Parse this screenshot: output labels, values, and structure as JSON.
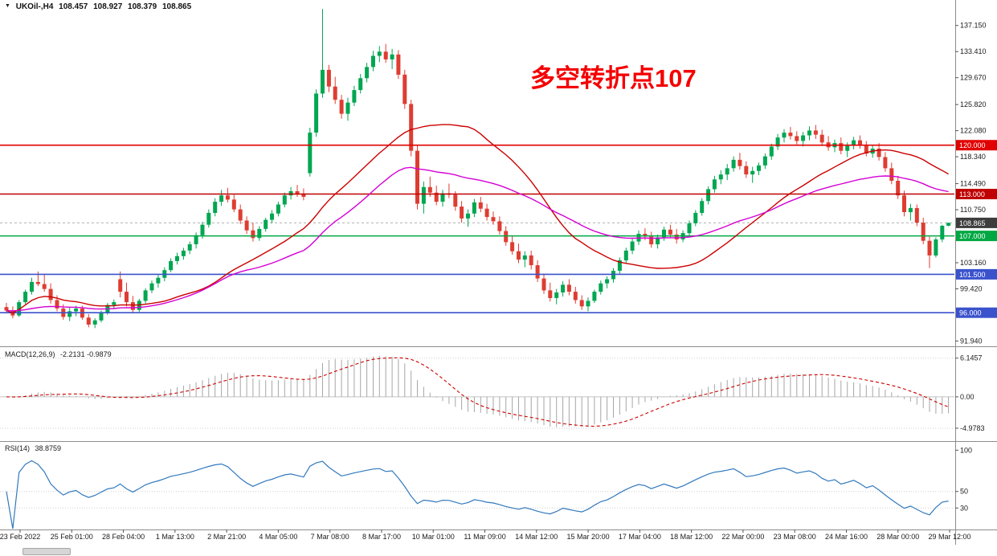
{
  "title_bar": {
    "symbol": "UKOil-,H4",
    "open": "108.457",
    "high": "108.927",
    "low": "108.379",
    "close": "108.865"
  },
  "annotation": {
    "text": "多空转折点107",
    "color": "#f50000"
  },
  "chart_data": {
    "type": "candlestick",
    "symbol": "UKOil-",
    "timeframe": "H4",
    "up_color": "#00a651",
    "down_color": "#de3d32",
    "candles": [
      [
        96.8,
        97.4,
        95.9,
        96.3
      ],
      [
        96.3,
        96.9,
        95.2,
        95.6
      ],
      [
        95.6,
        97.8,
        95.4,
        97.5
      ],
      [
        97.5,
        99.3,
        97.2,
        99.0
      ],
      [
        99.0,
        101.0,
        98.6,
        100.4
      ],
      [
        100.4,
        101.9,
        99.8,
        100.1
      ],
      [
        100.1,
        101.5,
        99.0,
        99.4
      ],
      [
        99.4,
        100.2,
        97.3,
        97.8
      ],
      [
        97.8,
        98.5,
        96.2,
        96.6
      ],
      [
        96.6,
        97.2,
        95.0,
        95.4
      ],
      [
        95.4,
        96.8,
        94.8,
        96.2
      ],
      [
        96.2,
        97.0,
        95.5,
        96.6
      ],
      [
        96.6,
        97.0,
        95.0,
        95.3
      ],
      [
        95.3,
        95.8,
        93.9,
        94.3
      ],
      [
        94.3,
        95.2,
        93.8,
        94.9
      ],
      [
        94.9,
        96.3,
        94.6,
        96.0
      ],
      [
        96.0,
        97.4,
        95.7,
        97.1
      ],
      [
        97.1,
        97.9,
        96.5,
        97.5
      ],
      [
        100.8,
        101.9,
        98.2,
        99.0
      ],
      [
        99.0,
        100.3,
        96.9,
        97.5
      ],
      [
        97.5,
        98.4,
        95.9,
        96.4
      ],
      [
        96.4,
        98.0,
        96.1,
        97.7
      ],
      [
        97.7,
        99.5,
        97.3,
        99.2
      ],
      [
        99.2,
        100.6,
        98.8,
        100.2
      ],
      [
        100.2,
        101.4,
        99.6,
        101.0
      ],
      [
        101.0,
        102.5,
        100.5,
        102.1
      ],
      [
        102.1,
        103.8,
        101.8,
        103.4
      ],
      [
        103.4,
        104.6,
        102.9,
        104.1
      ],
      [
        104.1,
        105.3,
        103.6,
        104.9
      ],
      [
        104.9,
        106.2,
        104.4,
        105.8
      ],
      [
        105.8,
        107.5,
        105.2,
        107.1
      ],
      [
        107.1,
        109.0,
        106.6,
        108.6
      ],
      [
        108.6,
        110.8,
        108.2,
        110.3
      ],
      [
        110.3,
        112.4,
        109.8,
        111.9
      ],
      [
        111.9,
        113.6,
        111.3,
        112.8
      ],
      [
        112.8,
        113.9,
        111.8,
        112.2
      ],
      [
        112.2,
        112.9,
        110.4,
        110.8
      ],
      [
        110.8,
        111.5,
        108.7,
        109.2
      ],
      [
        109.2,
        109.8,
        107.3,
        107.8
      ],
      [
        107.8,
        108.9,
        106.2,
        106.7
      ],
      [
        106.7,
        108.4,
        106.3,
        108.0
      ],
      [
        108.0,
        109.6,
        107.6,
        109.3
      ],
      [
        109.3,
        110.7,
        108.8,
        110.2
      ],
      [
        110.2,
        111.9,
        109.8,
        111.5
      ],
      [
        111.5,
        113.2,
        111.1,
        112.8
      ],
      [
        112.8,
        114.0,
        112.2,
        113.4
      ],
      [
        113.4,
        114.3,
        112.6,
        113.0
      ],
      [
        113.0,
        113.8,
        112.1,
        112.6
      ],
      [
        116.0,
        122.5,
        115.5,
        121.8
      ],
      [
        121.8,
        128.0,
        121.2,
        127.4
      ],
      [
        127.4,
        139.5,
        126.8,
        130.8
      ],
      [
        130.8,
        131.5,
        127.6,
        128.4
      ],
      [
        128.4,
        129.8,
        125.9,
        126.5
      ],
      [
        126.5,
        127.2,
        123.8,
        124.5
      ],
      [
        124.5,
        126.8,
        123.5,
        126.1
      ],
      [
        126.1,
        128.5,
        125.6,
        127.9
      ],
      [
        127.9,
        130.2,
        127.4,
        129.6
      ],
      [
        129.6,
        131.8,
        129.0,
        131.2
      ],
      [
        131.2,
        133.5,
        130.6,
        132.8
      ],
      [
        132.8,
        134.2,
        131.9,
        133.4
      ],
      [
        133.4,
        134.5,
        131.8,
        132.3
      ],
      [
        132.3,
        133.8,
        130.9,
        133.0
      ],
      [
        133.0,
        133.6,
        129.5,
        130.1
      ],
      [
        130.1,
        130.8,
        125.2,
        125.9
      ],
      [
        125.9,
        126.5,
        118.4,
        119.2
      ],
      [
        119.2,
        120.0,
        110.8,
        111.6
      ],
      [
        111.6,
        114.8,
        110.2,
        114.0
      ],
      [
        114.0,
        115.5,
        112.6,
        113.2
      ],
      [
        113.2,
        114.2,
        111.4,
        111.9
      ],
      [
        111.9,
        113.6,
        111.2,
        113.1
      ],
      [
        113.1,
        114.5,
        112.4,
        112.9
      ],
      [
        112.9,
        113.4,
        110.6,
        111.2
      ],
      [
        111.2,
        112.0,
        108.9,
        109.5
      ],
      [
        109.5,
        110.8,
        108.3,
        110.2
      ],
      [
        110.2,
        112.3,
        109.7,
        111.8
      ],
      [
        111.8,
        112.6,
        110.4,
        110.9
      ],
      [
        110.9,
        111.6,
        109.2,
        109.7
      ],
      [
        109.7,
        110.5,
        108.6,
        109.1
      ],
      [
        109.1,
        109.8,
        107.2,
        107.7
      ],
      [
        107.7,
        108.4,
        105.6,
        106.1
      ],
      [
        106.1,
        107.0,
        104.3,
        104.8
      ],
      [
        104.8,
        105.9,
        103.1,
        103.6
      ],
      [
        103.6,
        104.8,
        102.5,
        104.2
      ],
      [
        104.2,
        104.9,
        102.2,
        102.8
      ],
      [
        102.8,
        103.5,
        100.4,
        100.9
      ],
      [
        100.9,
        101.6,
        98.7,
        99.2
      ],
      [
        99.2,
        100.3,
        97.6,
        98.1
      ],
      [
        98.1,
        99.4,
        97.2,
        98.9
      ],
      [
        98.9,
        100.5,
        98.3,
        100.0
      ],
      [
        100.0,
        100.8,
        98.5,
        99.0
      ],
      [
        99.0,
        99.7,
        97.3,
        97.8
      ],
      [
        97.8,
        98.5,
        96.4,
        96.9
      ],
      [
        96.9,
        98.2,
        96.2,
        97.7
      ],
      [
        97.7,
        99.3,
        97.4,
        99.0
      ],
      [
        99.0,
        100.6,
        98.6,
        100.2
      ],
      [
        100.2,
        101.2,
        99.5,
        100.8
      ],
      [
        100.8,
        102.4,
        100.3,
        102.0
      ],
      [
        102.0,
        103.9,
        101.6,
        103.5
      ],
      [
        103.5,
        105.3,
        103.0,
        104.9
      ],
      [
        104.9,
        106.6,
        104.4,
        106.2
      ],
      [
        106.2,
        107.8,
        105.7,
        107.3
      ],
      [
        107.3,
        108.1,
        106.4,
        106.9
      ],
      [
        106.9,
        107.6,
        105.3,
        105.8
      ],
      [
        105.8,
        107.2,
        105.2,
        106.8
      ],
      [
        106.8,
        108.3,
        106.3,
        107.9
      ],
      [
        107.9,
        108.6,
        106.7,
        107.2
      ],
      [
        107.2,
        108.0,
        105.9,
        106.5
      ],
      [
        106.5,
        107.8,
        106.1,
        107.4
      ],
      [
        107.4,
        109.2,
        107.0,
        108.8
      ],
      [
        108.8,
        110.7,
        108.4,
        110.3
      ],
      [
        110.3,
        112.4,
        109.9,
        112.0
      ],
      [
        112.0,
        114.1,
        111.5,
        113.7
      ],
      [
        113.7,
        115.6,
        113.2,
        115.1
      ],
      [
        115.1,
        116.4,
        114.4,
        115.8
      ],
      [
        115.8,
        117.3,
        115.0,
        116.7
      ],
      [
        116.7,
        118.4,
        116.2,
        117.9
      ],
      [
        117.9,
        118.9,
        116.5,
        117.0
      ],
      [
        117.0,
        117.7,
        115.3,
        115.8
      ],
      [
        115.8,
        116.9,
        114.6,
        116.3
      ],
      [
        116.3,
        117.5,
        115.7,
        117.1
      ],
      [
        117.1,
        118.8,
        116.6,
        118.4
      ],
      [
        118.4,
        120.2,
        117.9,
        119.8
      ],
      [
        119.8,
        121.6,
        119.3,
        121.1
      ],
      [
        121.1,
        122.3,
        120.4,
        121.8
      ],
      [
        121.8,
        122.6,
        120.8,
        121.3
      ],
      [
        121.3,
        122.0,
        120.1,
        120.6
      ],
      [
        120.6,
        121.9,
        119.8,
        121.4
      ],
      [
        121.4,
        122.7,
        120.7,
        122.1
      ],
      [
        122.1,
        122.9,
        120.9,
        121.5
      ],
      [
        121.5,
        122.2,
        119.9,
        120.4
      ],
      [
        120.4,
        121.3,
        119.2,
        119.7
      ],
      [
        119.7,
        120.8,
        119.0,
        120.3
      ],
      [
        120.3,
        121.1,
        118.7,
        119.2
      ],
      [
        119.2,
        120.4,
        118.3,
        119.9
      ],
      [
        119.9,
        121.2,
        119.4,
        120.7
      ],
      [
        120.7,
        121.4,
        119.5,
        119.9
      ],
      [
        119.9,
        120.6,
        118.4,
        118.8
      ],
      [
        118.8,
        119.9,
        118.2,
        119.5
      ],
      [
        119.5,
        120.3,
        117.8,
        118.3
      ],
      [
        118.3,
        119.0,
        116.2,
        116.7
      ],
      [
        116.7,
        117.5,
        114.4,
        114.9
      ],
      [
        114.9,
        115.6,
        112.3,
        112.8
      ],
      [
        112.8,
        113.5,
        109.8,
        110.4
      ],
      [
        110.4,
        111.6,
        109.2,
        111.0
      ],
      [
        111.0,
        111.5,
        108.4,
        108.9
      ],
      [
        108.9,
        109.6,
        105.8,
        106.3
      ],
      [
        106.3,
        106.9,
        102.4,
        104.2
      ],
      [
        104.2,
        106.8,
        103.9,
        106.5
      ],
      [
        106.5,
        108.6,
        106.1,
        108.457
      ],
      [
        108.457,
        108.927,
        108.379,
        108.865
      ]
    ],
    "moving_averages": [
      {
        "name": "ma-fast-line",
        "type": "sma",
        "period": 26,
        "color": "#cc0000"
      },
      {
        "name": "ma-slow-line",
        "type": "ema",
        "period": 48,
        "color": "#d400d4"
      }
    ],
    "horizontal_levels": [
      {
        "price": 120.0,
        "label": "120.000",
        "color": "#e00000"
      },
      {
        "price": 113.0,
        "label": "113.000",
        "color": "#c00000"
      },
      {
        "price": 107.0,
        "label": "107.000",
        "color": "#00a843"
      },
      {
        "price": 101.5,
        "label": "101.500",
        "color": "#3a52cc"
      },
      {
        "price": 96.0,
        "label": "96.000",
        "color": "#3a52cc"
      }
    ],
    "current_price": {
      "value": 108.865,
      "label": "108.865",
      "badge_color": "#3d3d3d"
    },
    "price_axis": {
      "min": 91.3,
      "max": 140.8,
      "labels": [
        {
          "text": "137.150",
          "value": 137.15
        },
        {
          "text": "133.410",
          "value": 133.41
        },
        {
          "text": "129.670",
          "value": 129.67
        },
        {
          "text": "125.820",
          "value": 125.82
        },
        {
          "text": "122.080",
          "value": 122.08
        },
        {
          "text": "118.340",
          "value": 118.34
        },
        {
          "text": "114.490",
          "value": 114.49
        },
        {
          "text": "110.750",
          "value": 110.75
        },
        {
          "text": "103.160",
          "value": 103.16
        },
        {
          "text": "99.420",
          "value": 99.42
        },
        {
          "text": "91.940",
          "value": 91.94
        }
      ]
    },
    "time_labels": [
      "23 Feb 2022",
      "25 Feb 01:00",
      "28 Feb 04:00",
      "1 Mar 13:00",
      "2 Mar 21:00",
      "4 Mar 05:00",
      "7 Mar 08:00",
      "8 Mar 17:00",
      "10 Mar 01:00",
      "11 Mar 09:00",
      "14 Mar 12:00",
      "15 Mar 20:00",
      "17 Mar 04:00",
      "18 Mar 12:00",
      "22 Mar 00:00",
      "23 Mar 08:00",
      "24 Mar 16:00",
      "28 Mar 00:00",
      "29 Mar 12:00"
    ],
    "indicators": [
      {
        "display": "MACD(12,26,9)",
        "values_text": "-2.2131 -0.9879",
        "fast": 12,
        "slow": 26,
        "signal": 9,
        "range": [
          -6.9,
          7.9
        ],
        "histogram_color": "#a6a6a6",
        "signal_color": "#cc0000",
        "axis": [
          {
            "text": "6.1457",
            "value": 6.1457,
            "line": "dotted"
          },
          {
            "text": "0.00",
            "value": 0,
            "line": "solid"
          },
          {
            "text": "-4.9783",
            "value": -4.9783,
            "line": "dotted"
          }
        ]
      },
      {
        "display": "RSI(14)",
        "values_text": "38.8759",
        "period": 14,
        "range": [
          5,
          110
        ],
        "line_color": "#3179bd",
        "axis": [
          {
            "text": "100",
            "value": 100,
            "line": "none"
          },
          {
            "text": "50",
            "value": 50,
            "line": "dotted"
          },
          {
            "text": "30",
            "value": 30,
            "line": "dotted"
          }
        ]
      }
    ]
  }
}
